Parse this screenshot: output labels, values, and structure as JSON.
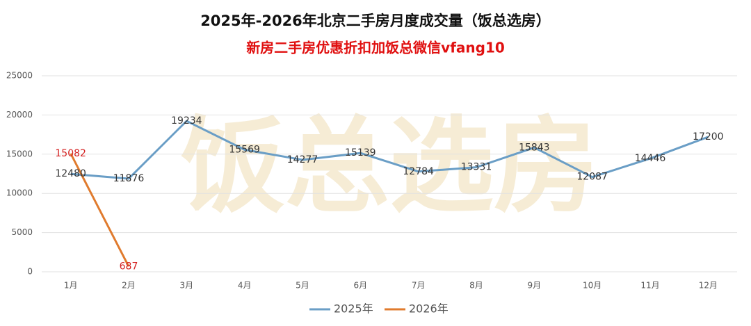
{
  "chart_data": {
    "type": "line",
    "title": "2025年-2026年北京二手房月度成交量（饭总选房）",
    "subtitle": "新房二手房优惠折扣加饭总微信vfang10",
    "watermark": "饭总选房",
    "categories": [
      "1月",
      "2月",
      "3月",
      "4月",
      "5月",
      "6月",
      "7月",
      "8月",
      "9月",
      "10月",
      "11月",
      "12月"
    ],
    "series": [
      {
        "name": "2025年",
        "color": "#6a9ec6",
        "label_color": "#333333",
        "values": [
          12480,
          11876,
          19234,
          15569,
          14277,
          15139,
          12784,
          13331,
          15843,
          12087,
          14446,
          17200
        ]
      },
      {
        "name": "2026年",
        "color": "#e07b2e",
        "label_color": "#d42020",
        "values": [
          15082,
          687,
          null,
          null,
          null,
          null,
          null,
          null,
          null,
          null,
          null,
          null
        ]
      }
    ],
    "ylim": [
      0,
      25000
    ],
    "yticks": [
      0,
      5000,
      10000,
      15000,
      20000,
      25000
    ],
    "grid": true,
    "legend": "bottom"
  }
}
